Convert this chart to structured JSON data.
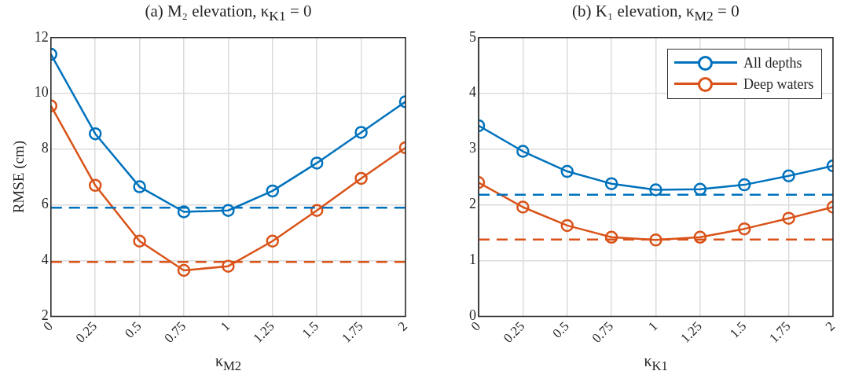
{
  "chart_data": [
    {
      "type": "line",
      "title": "(a) M₂ elevation, κ$_{K1}$ = 0",
      "xlabel": "κ$_{M2}$",
      "ylabel": "RMSE (cm)",
      "x": [
        0,
        0.25,
        0.5,
        0.75,
        1,
        1.25,
        1.5,
        1.75,
        2
      ],
      "series": [
        {
          "color": "#0072bd",
          "values": [
            11.4,
            8.55,
            6.65,
            5.75,
            5.8,
            6.5,
            7.5,
            8.6,
            9.7
          ]
        },
        {
          "color": "#d95319",
          "values": [
            9.55,
            6.7,
            4.7,
            3.65,
            3.8,
            4.7,
            5.8,
            6.95,
            8.05
          ]
        }
      ],
      "xlim": [
        0,
        2
      ],
      "xticks": [
        0,
        0.25,
        0.5,
        0.75,
        1,
        1.25,
        1.5,
        1.75,
        2
      ],
      "ylim": [
        2,
        12
      ],
      "yticks": [
        2,
        4,
        6,
        8,
        10,
        12
      ],
      "ref_lines": [
        {
          "axis": "y",
          "value": 5.9,
          "color": "#0072bd",
          "line_style": "dashed"
        },
        {
          "axis": "y",
          "value": 3.95,
          "color": "#d95319",
          "line_style": "dashed"
        }
      ],
      "grid": true,
      "legend": false,
      "marker": "circle",
      "line_style": "solid"
    },
    {
      "type": "line",
      "title": "(b) K₁ elevation, κ$_{M2}$ = 0",
      "xlabel": "κ$_{K1}$",
      "x": [
        0,
        0.25,
        0.5,
        0.75,
        1,
        1.25,
        1.5,
        1.75,
        2
      ],
      "series": [
        {
          "name": "All depths",
          "color": "#0072bd",
          "values": [
            3.42,
            2.96,
            2.6,
            2.38,
            2.27,
            2.28,
            2.36,
            2.52,
            2.7
          ]
        },
        {
          "name": "Deep waters",
          "color": "#d95319",
          "values": [
            2.4,
            1.96,
            1.63,
            1.42,
            1.37,
            1.42,
            1.57,
            1.76,
            1.96
          ]
        }
      ],
      "xlim": [
        0,
        2
      ],
      "xticks": [
        0,
        0.25,
        0.5,
        0.75,
        1,
        1.25,
        1.5,
        1.75,
        2
      ],
      "ylim": [
        0,
        5
      ],
      "yticks": [
        0,
        1,
        2,
        3,
        4,
        5
      ],
      "ref_lines": [
        {
          "axis": "y",
          "value": 2.18,
          "color": "#0072bd",
          "line_style": "dashed"
        },
        {
          "axis": "y",
          "value": 1.38,
          "color": "#d95319",
          "line_style": "dashed"
        }
      ],
      "grid": true,
      "legend": "top right",
      "marker": "circle",
      "line_style": "solid"
    }
  ]
}
